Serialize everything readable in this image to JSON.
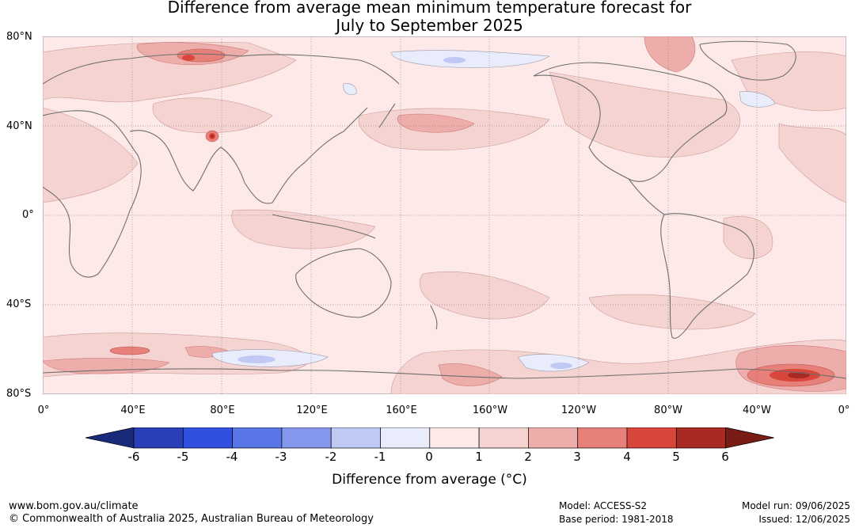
{
  "title": {
    "line1": "Difference from average mean minimum temperature forecast for",
    "line2": "July to September 2025"
  },
  "map": {
    "lat_labels": [
      "80°N",
      "40°N",
      "0°",
      "40°S",
      "80°S"
    ],
    "lon_labels": [
      "0°",
      "40°E",
      "80°E",
      "120°E",
      "160°E",
      "160°W",
      "120°W",
      "80°W",
      "40°W",
      "0°"
    ]
  },
  "colorbar": {
    "ticks": [
      "-6",
      "-5",
      "-4",
      "-3",
      "-2",
      "-1",
      "0",
      "1",
      "2",
      "3",
      "4",
      "5",
      "6"
    ],
    "colors": [
      "#1a2a7a",
      "#2a40b8",
      "#3050e0",
      "#5a75e6",
      "#8497ec",
      "#c0c9f4",
      "#e8ecfb",
      "#fce9e8",
      "#f5d3d1",
      "#edaeab",
      "#e8807a",
      "#d9463c",
      "#a82a22",
      "#7a1c16"
    ],
    "label": "Difference from average (°C)"
  },
  "footer": {
    "url": "www.bom.gov.au/climate",
    "copyright": "© Commonwealth of Australia 2025, Australian Bureau of Meteorology",
    "model": "Model: ACCESS-S2",
    "base_period": "Base period: 1981-2018",
    "model_run": "Model run: 09/06/2025",
    "issued": "Issued: 12/06/2025"
  }
}
